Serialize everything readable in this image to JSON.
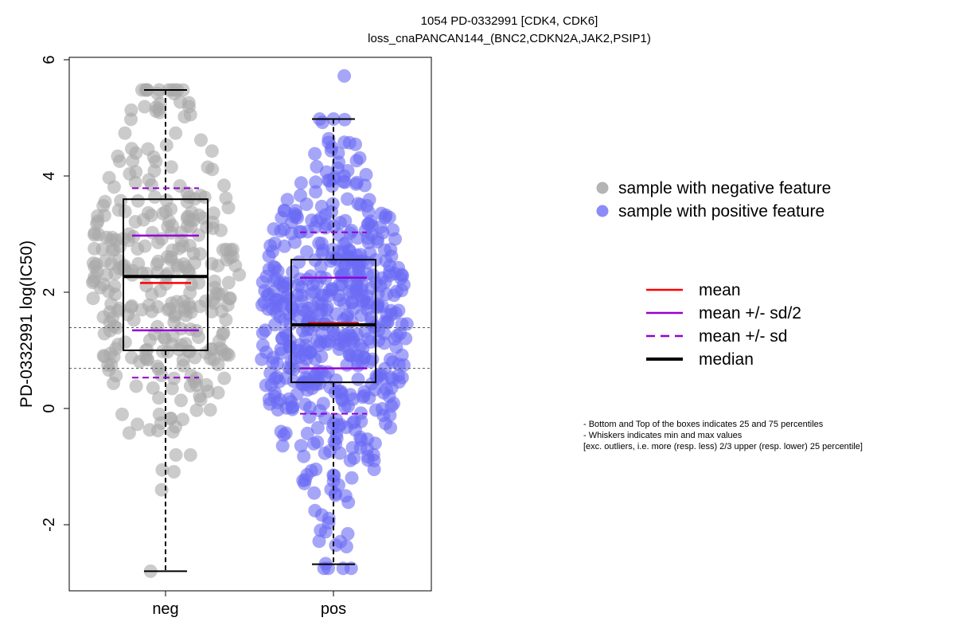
{
  "chart_data": {
    "type": "box_beeswarm",
    "title": "1054 PD-0332991 [CDK4, CDK6]",
    "subtitle": "loss_cnaPANCAN144_(BNC2,CDKN2A,JAK2,PSIP1)",
    "ylabel": "PD-0332991 log(IC50)",
    "xlabel": "",
    "ylim": [
      -3.1,
      6.1
    ],
    "yticks": [
      -2,
      0,
      2,
      4,
      6
    ],
    "categories": [
      "neg",
      "pos"
    ],
    "reference_lines": [
      0.69,
      1.39
    ],
    "groups": [
      {
        "name": "neg",
        "color": "#a9a9a9",
        "n_points": 330,
        "whisker_min": -2.8,
        "q1": 1.0,
        "median": 2.27,
        "q3": 3.6,
        "whisker_max": 5.48,
        "mean": 2.16,
        "sd": 1.63,
        "max_point": 5.48,
        "min_point": -2.8
      },
      {
        "name": "pos",
        "color": "#6b6bf5",
        "n_points": 560,
        "whisker_min": -2.68,
        "q1": 0.45,
        "median": 1.44,
        "q3": 2.56,
        "whisker_max": 4.98,
        "mean": 1.47,
        "sd": 1.56,
        "max_point": 5.72,
        "min_point": -2.75
      }
    ],
    "legend_points": [
      {
        "label": "sample with negative feature",
        "color": "#b4b4b4"
      },
      {
        "label": "sample with positive feature",
        "color": "#8c8cf8"
      }
    ],
    "legend_lines": [
      {
        "label": "mean",
        "color": "#ff0000",
        "style": "solid"
      },
      {
        "label": "mean +/- sd/2",
        "color": "#9400d3",
        "style": "solid"
      },
      {
        "label": "mean +/- sd",
        "color": "#9400d3",
        "style": "dashed"
      },
      {
        "label": "median",
        "color": "#000000",
        "style": "solid-thick"
      }
    ],
    "notes": [
      "- Bottom and Top of the boxes indicates 25 and 75 percentiles",
      "- Whiskers indicates min and max values",
      "[exc. outliers, i.e. more (resp. less) 2/3 upper (resp. lower) 25 percentile]"
    ]
  }
}
